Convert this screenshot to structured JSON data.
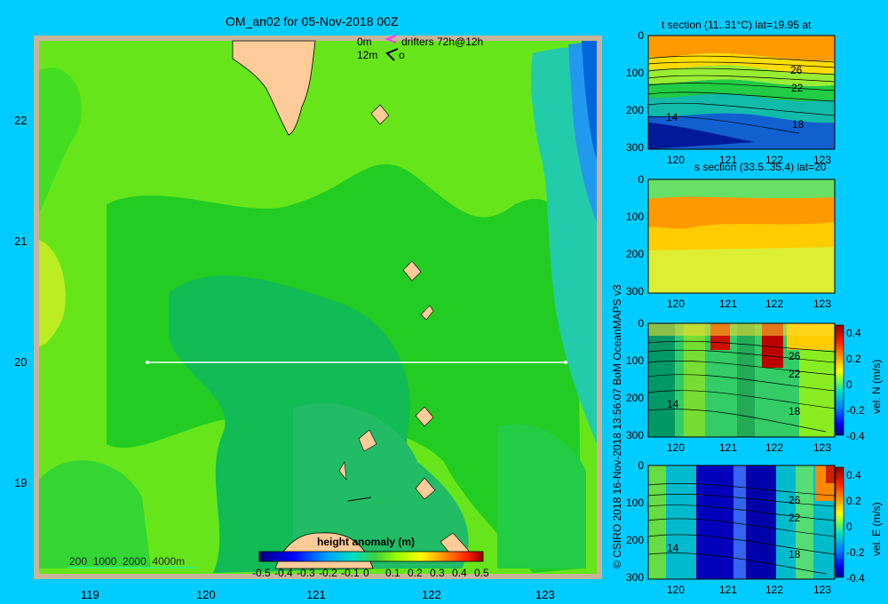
{
  "main": {
    "title": "OM_an02 for 05-Nov-2018 00Z",
    "drifter_legend": {
      "row1_depth": "0m",
      "row1_label": "drifters 72h@12h",
      "row2_depth": "12m",
      "row2_label": "o"
    },
    "depth_legend": "200  1000  2000  4000m",
    "colorbar": {
      "title": "height anomaly (m)",
      "ticks": [
        "-0.5",
        "-0.4",
        "-0.3",
        "-0.2",
        "-0.1",
        "0",
        "0.1",
        "0.2",
        "0.3",
        "0.4",
        "0.5"
      ]
    },
    "side_credit": "© CSIRO 2018   16-Nov-2018 13:56:07 BoM OceanMAPS v3"
  },
  "chart_data": [
    {
      "type": "heatmap",
      "title": "OM_an02 for 05-Nov-2018 00Z",
      "xlim": [
        118.5,
        123.5
      ],
      "ylim": [
        18.3,
        22.7
      ],
      "x_ticks": [
        "119",
        "120",
        "121",
        "122",
        "123"
      ],
      "y_ticks": [
        "19",
        "20",
        "21",
        "22"
      ],
      "section_line": {
        "from": [
          119.5,
          20.0
        ],
        "to": [
          123.2,
          20.0
        ]
      },
      "colorbar_label": "height anomaly (m)",
      "colorbar_range": [
        -0.5,
        0.5
      ]
    },
    {
      "type": "heatmap",
      "title": "t section (11..31°C) lat=19.95 at",
      "x_ticks": [
        "120",
        "121",
        "122",
        "123"
      ],
      "y_ticks": [
        "0",
        "100",
        "200",
        "300"
      ],
      "contour_labels": [
        "26",
        "22",
        "14",
        "18"
      ]
    },
    {
      "type": "heatmap",
      "title": "s section (33.5..35.4) lat=20",
      "x_ticks": [
        "120",
        "121",
        "122",
        "123"
      ],
      "y_ticks": [
        "0",
        "100",
        "200",
        "300"
      ]
    },
    {
      "type": "heatmap",
      "title": "",
      "x_ticks": [
        "120",
        "121",
        "122",
        "123"
      ],
      "y_ticks": [
        "0",
        "100",
        "200",
        "300"
      ],
      "contour_labels": [
        "26",
        "22",
        "14",
        "18"
      ],
      "colorbar_label": "vel. N (m/s)",
      "colorbar_ticks": [
        "0.4",
        "0.2",
        "0",
        "-0.2",
        "-0.4"
      ]
    },
    {
      "type": "heatmap",
      "title": "",
      "x_ticks": [
        "120",
        "121",
        "122",
        "123"
      ],
      "y_ticks": [
        "0",
        "100",
        "200",
        "300"
      ],
      "contour_labels": [
        "26",
        "22",
        "14",
        "18"
      ],
      "colorbar_label": "vel. E (m/s)",
      "colorbar_ticks": [
        "0.4",
        "0.2",
        "0",
        "-0.2",
        "-0.4"
      ]
    }
  ]
}
